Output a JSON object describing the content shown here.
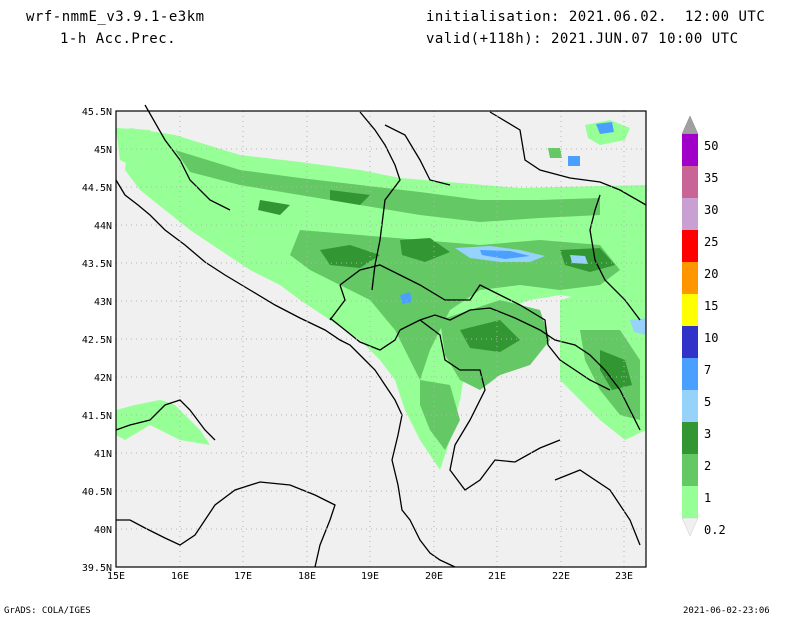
{
  "header": {
    "model": "wrf-nmmE_v3.9.1-e3km",
    "field": "1-h Acc.Prec.",
    "init": "initialisation: 2021.06.02.  12:00 UTC",
    "valid": "valid(+118h): 2021.JUN.07 10:00 UTC"
  },
  "footer": {
    "left": "GrADS: COLA/IGES",
    "right": "2021-06-02-23:06"
  },
  "map": {
    "lat_labels": [
      "45.5N",
      "45N",
      "44.5N",
      "44N",
      "43.5N",
      "43N",
      "42.5N",
      "42N",
      "41.5N",
      "41N",
      "40.5N",
      "40N",
      "39.5N"
    ],
    "lon_labels": [
      "15E",
      "16E",
      "17E",
      "18E",
      "19E",
      "20E",
      "21E",
      "22E",
      "23E"
    ]
  },
  "legend": {
    "levels": [
      "50",
      "35",
      "30",
      "25",
      "20",
      "15",
      "10",
      "7",
      "5",
      "3",
      "2",
      "1",
      "0.2"
    ],
    "colors": [
      "#a000c8",
      "#c86496",
      "#c8a0d2",
      "#ff0000",
      "#ff9600",
      "#ffff00",
      "#3232c8",
      "#4ba0ff",
      "#96d2fa",
      "#329632",
      "#64c864",
      "#96ff96"
    ],
    "cap_top": "#a0a0a0",
    "cap_bottom": "#f0f0f0"
  },
  "colors": {
    "land_background": "#f0f0f0",
    "green_light": "#96ff96",
    "green_mid": "#64c864",
    "green_dark": "#329632",
    "blue_light": "#96d2fa",
    "blue_mid": "#4ba0ff"
  }
}
